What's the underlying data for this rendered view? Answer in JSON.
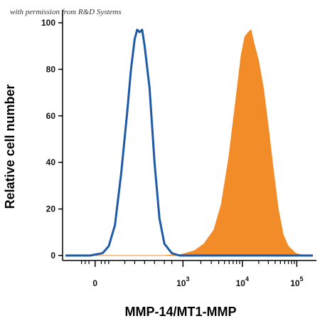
{
  "watermark": "with permission from R&D Systems",
  "colors": {
    "control_line": "#1f5aa6",
    "stained_fill": "#f28c28",
    "axis": "#000000"
  },
  "chart_data": {
    "type": "area",
    "title": "",
    "xlabel": "MMP-14/MT1-MMP",
    "ylabel": "Relative cell number",
    "x_scale": "biexponential",
    "x_tick_labels": [
      {
        "base": "0",
        "exp": ""
      },
      {
        "base": "10",
        "exp": "3"
      },
      {
        "base": "10",
        "exp": "4"
      },
      {
        "base": "10",
        "exp": "5"
      }
    ],
    "ylim": [
      0,
      100
    ],
    "y_ticks": [
      0,
      20,
      40,
      60,
      80,
      100
    ],
    "grid": false,
    "legend": "none",
    "series": [
      {
        "style": "outline",
        "color": "#1f5aa6",
        "points": [
          [
            0.0,
            0
          ],
          [
            0.1,
            0
          ],
          [
            0.15,
            1
          ],
          [
            0.175,
            4
          ],
          [
            0.2,
            13
          ],
          [
            0.225,
            35
          ],
          [
            0.25,
            62
          ],
          [
            0.265,
            80
          ],
          [
            0.28,
            93
          ],
          [
            0.29,
            97
          ],
          [
            0.3,
            96
          ],
          [
            0.31,
            97
          ],
          [
            0.32,
            90
          ],
          [
            0.34,
            72
          ],
          [
            0.36,
            40
          ],
          [
            0.38,
            16
          ],
          [
            0.4,
            5
          ],
          [
            0.43,
            1
          ],
          [
            0.46,
            0
          ],
          [
            1.0,
            0
          ]
        ]
      },
      {
        "style": "filled",
        "color": "#f28c28",
        "points": [
          [
            0.0,
            0
          ],
          [
            0.4,
            0
          ],
          [
            0.47,
            0.5
          ],
          [
            0.52,
            2
          ],
          [
            0.56,
            5
          ],
          [
            0.6,
            11
          ],
          [
            0.63,
            22
          ],
          [
            0.66,
            42
          ],
          [
            0.69,
            68
          ],
          [
            0.71,
            86
          ],
          [
            0.725,
            94
          ],
          [
            0.74,
            96
          ],
          [
            0.75,
            97
          ],
          [
            0.76,
            92
          ],
          [
            0.78,
            84
          ],
          [
            0.8,
            72
          ],
          [
            0.82,
            55
          ],
          [
            0.84,
            37
          ],
          [
            0.86,
            20
          ],
          [
            0.88,
            9
          ],
          [
            0.9,
            4
          ],
          [
            0.93,
            1
          ],
          [
            0.96,
            0
          ],
          [
            1.0,
            0
          ]
        ]
      }
    ]
  }
}
